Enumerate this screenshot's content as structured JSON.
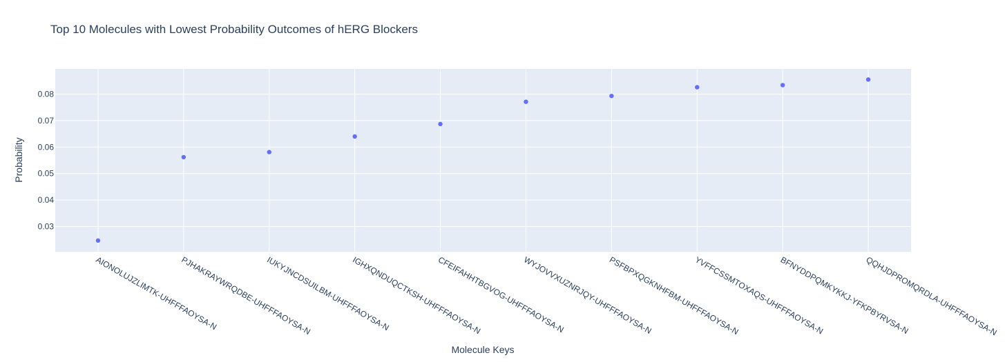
{
  "chart_data": {
    "type": "scatter",
    "title": "Top 10 Molecules with Lowest Probability Outcomes of hERG Blockers",
    "xlabel": "Molecule Keys",
    "ylabel": "Probability",
    "categories": [
      "AIONOLUJZLIMTK-UHFFFAOYSA-N",
      "PJHAKRAYWRQDBE-UHFFFAOYSA-N",
      "IUKYJNCDSUILBM-UHFFFAOYSA-N",
      "IGHXQNDUQCTKSH-UHFFFAOYSA-N",
      "CFEIFAHHTBGVOG-UHFFFAOYSA-N",
      "WYJOVVXUZNRJQY-UHFFFAOYSA-N",
      "PSFBPXQGKNHFBM-UHFFFAOYSA-N",
      "YVFFCSSMTOXAQS-UHFFFAOYSA-N",
      "BFNYDDPQMKYKKJ-YFKPBYRVSA-N",
      "QQHJDPROMQRDLA-UHFFFAOYSA-N"
    ],
    "values": [
      0.0247,
      0.0562,
      0.0581,
      0.064,
      0.0687,
      0.0771,
      0.0793,
      0.0826,
      0.0834,
      0.0855
    ],
    "yticks": [
      "0.03",
      "0.04",
      "0.05",
      "0.06",
      "0.07",
      "0.08"
    ],
    "ylim": [
      0.0205,
      0.0895
    ],
    "grid": true,
    "colors": {
      "marker": "#636efa",
      "plot_bg": "#e5ecf6",
      "grid": "#ffffff",
      "text": "#2a3f5f"
    }
  }
}
